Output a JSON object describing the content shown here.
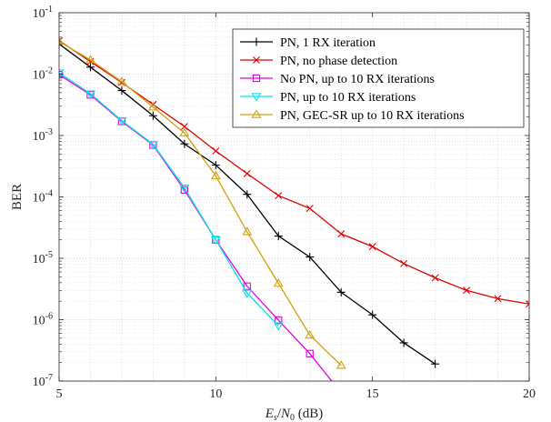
{
  "chart_data": {
    "type": "line",
    "xlabel": "E_s/N_0 (dB)",
    "ylabel": "BER",
    "y_scale": "log",
    "xlim": [
      5,
      20
    ],
    "ylim": [
      1e-07,
      0.1
    ],
    "x_ticks": [
      "5",
      "10",
      "15",
      "20"
    ],
    "y_ticks": [
      "10^-7",
      "10^-6",
      "10^-5",
      "10^-4",
      "10^-3",
      "10^-2",
      "10^-1"
    ],
    "grid": true,
    "legend_position": "top-right",
    "series": [
      {
        "name": "PN, 1 RX iteration",
        "color": "#000000",
        "marker": "plus",
        "x": [
          5,
          6,
          7,
          8,
          9,
          10,
          11,
          12,
          13,
          14,
          15,
          16,
          17
        ],
        "y": [
          0.031,
          0.013,
          0.0054,
          0.0021,
          0.00073,
          0.00033,
          0.00011,
          2.3e-05,
          1.05e-05,
          2.8e-06,
          1.2e-06,
          4.2e-07,
          1.9e-07
        ]
      },
      {
        "name": "PN, no phase detection",
        "color": "#e00000",
        "marker": "x",
        "x": [
          5,
          6,
          7,
          8,
          9,
          10,
          11,
          12,
          13,
          14,
          15,
          16,
          17,
          18,
          19,
          20
        ],
        "y": [
          0.035,
          0.016,
          0.0073,
          0.0032,
          0.0014,
          0.00056,
          0.00024,
          0.000105,
          6.5e-05,
          2.5e-05,
          1.55e-05,
          8.2e-06,
          4.8e-06,
          3e-06,
          2.2e-06,
          1.8e-06
        ]
      },
      {
        "name": "No PN, up to 10 RX iterations",
        "color": "#e600e6",
        "marker": "square",
        "x": [
          5,
          6,
          7,
          8,
          9,
          10,
          11,
          12,
          13,
          13.7
        ],
        "y": [
          0.0098,
          0.0046,
          0.0017,
          0.0007,
          0.00013,
          2e-05,
          3.5e-06,
          9.8e-07,
          2.8e-07,
          1e-07
        ]
      },
      {
        "name": "PN, up to 10 RX iterations",
        "color": "#00e6e6",
        "marker": "triangle-down",
        "x": [
          5,
          6,
          7,
          8,
          9,
          10,
          11,
          12
        ],
        "y": [
          0.0105,
          0.0048,
          0.00175,
          0.00072,
          0.00014,
          2e-05,
          2.7e-06,
          8e-07
        ]
      },
      {
        "name": "PN, GEC-SR up to 10 RX iterations",
        "color": "#d4a10f",
        "marker": "triangle-up",
        "x": [
          5,
          6,
          7,
          8,
          9,
          10,
          11,
          12,
          13,
          14
        ],
        "y": [
          0.034,
          0.017,
          0.0075,
          0.0029,
          0.0011,
          0.00022,
          2.7e-05,
          3.9e-06,
          5.6e-07,
          1.8e-07
        ]
      }
    ]
  }
}
